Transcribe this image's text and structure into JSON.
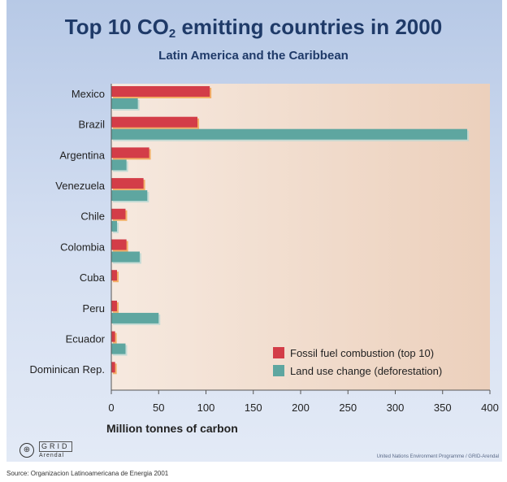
{
  "chart_data": {
    "type": "bar",
    "orientation": "horizontal",
    "title_main": "Top 10 CO",
    "title_sub": "2",
    "title_rest": " emitting countries in 2000",
    "subtitle": "Latin America and the Caribbean",
    "categories": [
      "Mexico",
      "Brazil",
      "Argentina",
      "Venezuela",
      "Chile",
      "Colombia",
      "Cuba",
      "Peru",
      "Ecuador",
      "Dominican Rep."
    ],
    "series": [
      {
        "name": "Fossil fuel combustion (top 10)",
        "color": "#d33d48",
        "values": [
          104,
          91,
          40,
          34,
          15,
          16,
          6,
          6,
          4,
          4
        ]
      },
      {
        "name": "Land use change (deforestation)",
        "color": "#5ea6a0",
        "values": [
          28,
          376,
          16,
          38,
          6,
          30,
          0,
          50,
          15,
          0
        ]
      }
    ],
    "xlabel": "Million tonnes of carbon",
    "xlim": [
      0,
      400
    ],
    "xticks": [
      0,
      50,
      100,
      150,
      200,
      250,
      300,
      350,
      400
    ],
    "legend_position": "bottom-right",
    "grid": false
  },
  "footer": {
    "logo_text": "GRID",
    "logo_subtext": "Arendal",
    "credit": "United Nations Environment Programme / GRID-Arendal",
    "source": "Source:  Organizacion Latinoamericana de Energia 2001"
  }
}
